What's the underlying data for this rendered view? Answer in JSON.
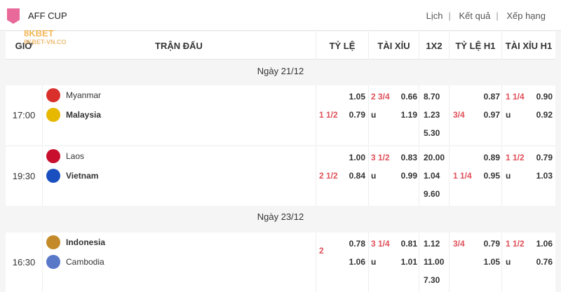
{
  "header": {
    "title": "AFF CUP",
    "nav": [
      "Lịch",
      "Kết quả",
      "Xếp hạng"
    ],
    "watermark": "8KBET",
    "watermark_sub": "8KBET-VN.CO"
  },
  "columns": [
    "GIỜ",
    "TRẬN ĐẤU",
    "TỶ LỆ",
    "TÀI XỈU",
    "1X2",
    "TỶ LỆ H1",
    "TÀI XỈU H1"
  ],
  "groups": [
    {
      "date": "Ngày 21/12",
      "matches": [
        {
          "time": "17:00",
          "home": "Myanmar",
          "away": "Malaysia",
          "tyle": {
            "line": "1 1/2",
            "o1": "1.05",
            "o2": "0.79"
          },
          "taixiu": {
            "line": "2 3/4",
            "u": "u",
            "o1": "0.66",
            "o2": "1.19"
          },
          "x12": [
            "8.70",
            "1.23",
            "5.30"
          ],
          "tyleh1": {
            "line": "3/4",
            "o1": "0.87",
            "o2": "0.97"
          },
          "taixiuh1": {
            "line": "1 1/4",
            "u": "u",
            "o1": "0.90",
            "o2": "0.92"
          }
        },
        {
          "time": "19:30",
          "home": "Laos",
          "away": "Vietnam",
          "tyle": {
            "line": "2 1/2",
            "o1": "1.00",
            "o2": "0.84"
          },
          "taixiu": {
            "line": "3 1/2",
            "u": "u",
            "o1": "0.83",
            "o2": "0.99"
          },
          "x12": [
            "20.00",
            "1.04",
            "9.60"
          ],
          "tyleh1": {
            "line": "1 1/4",
            "o1": "0.89",
            "o2": "0.95"
          },
          "taixiuh1": {
            "line": "1 1/2",
            "u": "u",
            "o1": "0.79",
            "o2": "1.03"
          }
        }
      ]
    },
    {
      "date": "Ngày 23/12",
      "matches": [
        {
          "time": "16:30",
          "home": "Indonesia",
          "away": "Cambodia",
          "tyle": {
            "line": "2",
            "o1": "0.78",
            "o2": "1.06"
          },
          "taixiu": {
            "line": "3 1/4",
            "u": "u",
            "o1": "0.81",
            "o2": "1.01"
          },
          "x12": [
            "1.12",
            "11.00",
            "7.30"
          ],
          "tyleh1": {
            "line": "3/4",
            "o1": "0.79",
            "o2": "1.05"
          },
          "taixiuh1": {
            "line": "1 1/2",
            "u": "u",
            "o1": "1.06",
            "o2": "0.76"
          }
        }
      ]
    }
  ]
}
